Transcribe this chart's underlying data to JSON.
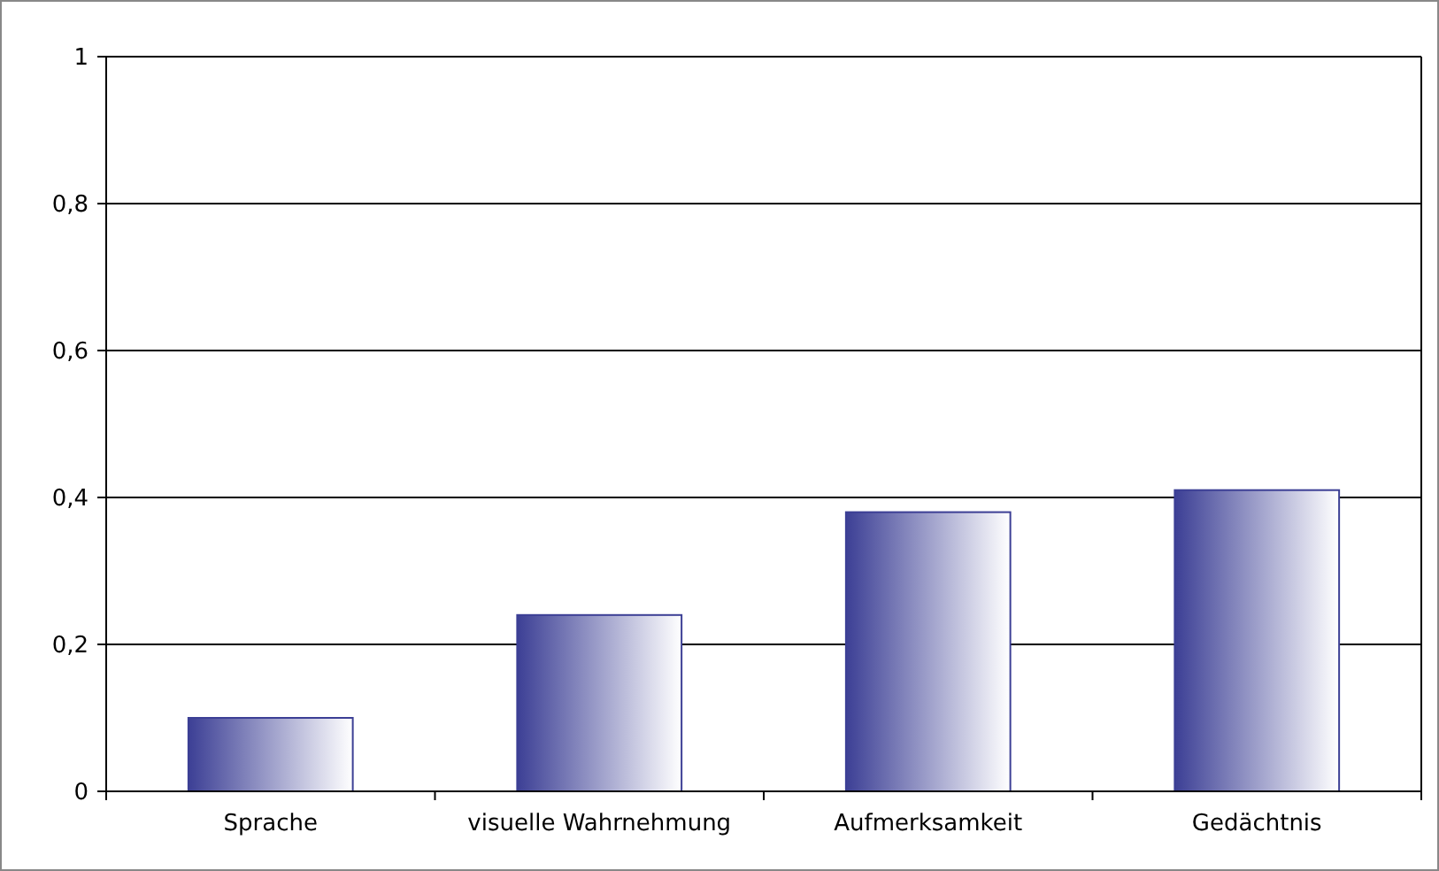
{
  "chart_data": {
    "type": "bar",
    "categories": [
      "Sprache",
      "visuelle Wahrnehmung",
      "Aufmerksamkeit",
      "Gedächtnis"
    ],
    "values": [
      0.1,
      0.24,
      0.38,
      0.41
    ],
    "color": "#3c3f95",
    "ylim": [
      0,
      1
    ],
    "yticks": [
      {
        "value": 0,
        "label": "0"
      },
      {
        "value": 0.2,
        "label": "0,2"
      },
      {
        "value": 0.4,
        "label": "0,4"
      },
      {
        "value": 0.6,
        "label": "0,6"
      },
      {
        "value": 0.8,
        "label": "0,8"
      },
      {
        "value": 1,
        "label": "1"
      }
    ],
    "grid": "y"
  }
}
